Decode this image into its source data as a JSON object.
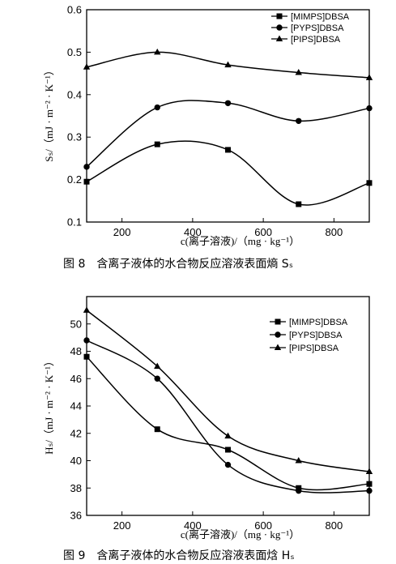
{
  "chart_data": [
    {
      "type": "line",
      "xlabel": "c(离子溶液)/（mg · kg⁻¹）",
      "ylabel": "Sₛ/（mJ · m⁻² · K⁻¹）",
      "caption": "图 8　含离子液体的水合物反应溶液表面熵 Sₛ",
      "xlim": [
        100,
        900
      ],
      "ylim": [
        0.1,
        0.6
      ],
      "xticks": [
        200,
        400,
        600,
        800
      ],
      "yticks": [
        0.1,
        0.2,
        0.3,
        0.4,
        0.5,
        0.6
      ],
      "ytick_labels": [
        "0.1",
        "0.2",
        "0.3",
        "0.4",
        "0.5",
        "0.6"
      ],
      "legend_position": "top-right",
      "series": [
        {
          "name": "[MIMPS]DBSA",
          "marker": "square",
          "x": [
            100,
            300,
            500,
            700,
            900
          ],
          "y": [
            0.195,
            0.283,
            0.27,
            0.142,
            0.192
          ]
        },
        {
          "name": "[PYPS]DBSA",
          "marker": "circle",
          "x": [
            100,
            300,
            500,
            700,
            900
          ],
          "y": [
            0.23,
            0.37,
            0.38,
            0.338,
            0.368
          ]
        },
        {
          "name": "[PIPS]DBSA",
          "marker": "triangle",
          "x": [
            100,
            300,
            500,
            700,
            900
          ],
          "y": [
            0.465,
            0.5,
            0.47,
            0.452,
            0.44
          ]
        }
      ]
    },
    {
      "type": "line",
      "xlabel": "c(离子溶液)/（mg · kg⁻¹）",
      "ylabel": "Hₛ/（mJ · m⁻² · K⁻¹）",
      "caption": "图 9　含离子液体的水合物反应溶液表面焓 Hₛ",
      "xlim": [
        100,
        900
      ],
      "ylim": [
        36,
        52
      ],
      "xticks": [
        200,
        400,
        600,
        800
      ],
      "yticks": [
        36,
        38,
        40,
        42,
        44,
        46,
        48,
        50
      ],
      "ytick_labels": [
        "36",
        "38",
        "40",
        "42",
        "44",
        "46",
        "48",
        "50"
      ],
      "legend_position": "top-right",
      "series": [
        {
          "name": "[MIMPS]DBSA",
          "marker": "square",
          "x": [
            100,
            300,
            500,
            700,
            900
          ],
          "y": [
            47.6,
            42.3,
            40.8,
            38.0,
            38.3
          ]
        },
        {
          "name": "[PYPS]DBSA",
          "marker": "circle",
          "x": [
            100,
            300,
            500,
            700,
            900
          ],
          "y": [
            48.8,
            46.0,
            39.7,
            37.8,
            37.8
          ]
        },
        {
          "name": "[PIPS]DBSA",
          "marker": "triangle",
          "x": [
            100,
            300,
            500,
            700,
            900
          ],
          "y": [
            51.0,
            46.9,
            41.8,
            40.0,
            39.2
          ]
        }
      ]
    }
  ]
}
